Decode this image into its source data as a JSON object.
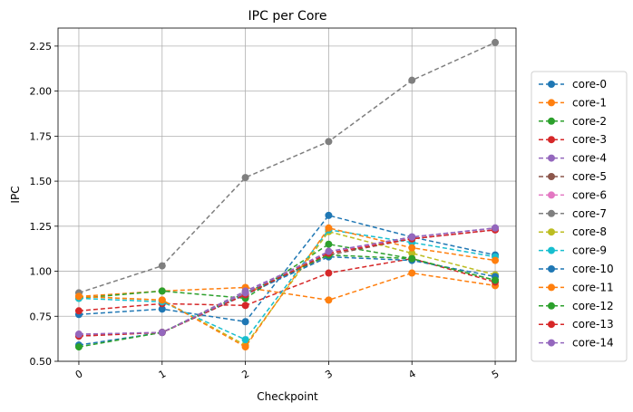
{
  "chart_data": {
    "type": "line",
    "title": "IPC per Core",
    "xlabel": "Checkpoint",
    "ylabel": "IPC",
    "x": [
      0,
      1,
      2,
      3,
      4,
      5
    ],
    "xticks": [
      "0",
      "1",
      "2",
      "3",
      "4",
      "5"
    ],
    "xlim": [
      -0.25,
      5.25
    ],
    "ylim": [
      0.5,
      2.35
    ],
    "yticks": [
      "0.50",
      "0.75",
      "1.00",
      "1.25",
      "1.50",
      "1.75",
      "2.00",
      "2.25"
    ],
    "grid": true,
    "legend_position": "right",
    "line_style": "dashed",
    "marker": "circle",
    "series": [
      {
        "name": "core-0",
        "color": "#1f77b4",
        "values": [
          0.76,
          0.79,
          0.72,
          1.31,
          1.19,
          1.09
        ]
      },
      {
        "name": "core-1",
        "color": "#ff7f0e",
        "values": [
          0.86,
          0.89,
          0.91,
          0.84,
          0.99,
          0.92
        ]
      },
      {
        "name": "core-2",
        "color": "#2ca02c",
        "values": [
          0.85,
          0.89,
          0.85,
          1.15,
          1.07,
          0.95
        ]
      },
      {
        "name": "core-3",
        "color": "#d62728",
        "values": [
          0.78,
          0.82,
          0.81,
          0.99,
          1.07,
          0.94
        ]
      },
      {
        "name": "core-4",
        "color": "#9467bd",
        "values": [
          0.65,
          0.66,
          0.89,
          1.1,
          1.19,
          1.24
        ]
      },
      {
        "name": "core-5",
        "color": "#8c564b",
        "values": [
          0.64,
          0.66,
          0.87,
          1.09,
          1.18,
          1.23
        ]
      },
      {
        "name": "core-6",
        "color": "#e377c2",
        "values": [
          0.65,
          0.66,
          0.88,
          1.11,
          1.18,
          1.23
        ]
      },
      {
        "name": "core-7",
        "color": "#7f7f7f",
        "values": [
          0.88,
          1.03,
          1.52,
          1.72,
          2.06,
          2.27
        ]
      },
      {
        "name": "core-8",
        "color": "#bcbd22",
        "values": [
          0.86,
          0.84,
          0.59,
          1.22,
          1.1,
          0.98
        ]
      },
      {
        "name": "core-9",
        "color": "#17becf",
        "values": [
          0.85,
          0.83,
          0.62,
          1.23,
          1.16,
          1.08
        ]
      },
      {
        "name": "core-10",
        "color": "#1f77b4",
        "values": [
          0.59,
          0.66,
          0.87,
          1.08,
          1.06,
          0.97
        ]
      },
      {
        "name": "core-11",
        "color": "#ff7f0e",
        "values": [
          0.86,
          0.84,
          0.58,
          1.24,
          1.13,
          1.06
        ]
      },
      {
        "name": "core-12",
        "color": "#2ca02c",
        "values": [
          0.58,
          0.66,
          0.88,
          1.09,
          1.07,
          0.95
        ]
      },
      {
        "name": "core-13",
        "color": "#d62728",
        "values": [
          0.64,
          0.66,
          0.87,
          1.1,
          1.18,
          1.23
        ]
      },
      {
        "name": "core-14",
        "color": "#9467bd",
        "values": [
          0.65,
          0.66,
          0.88,
          1.11,
          1.19,
          1.24
        ]
      }
    ]
  }
}
